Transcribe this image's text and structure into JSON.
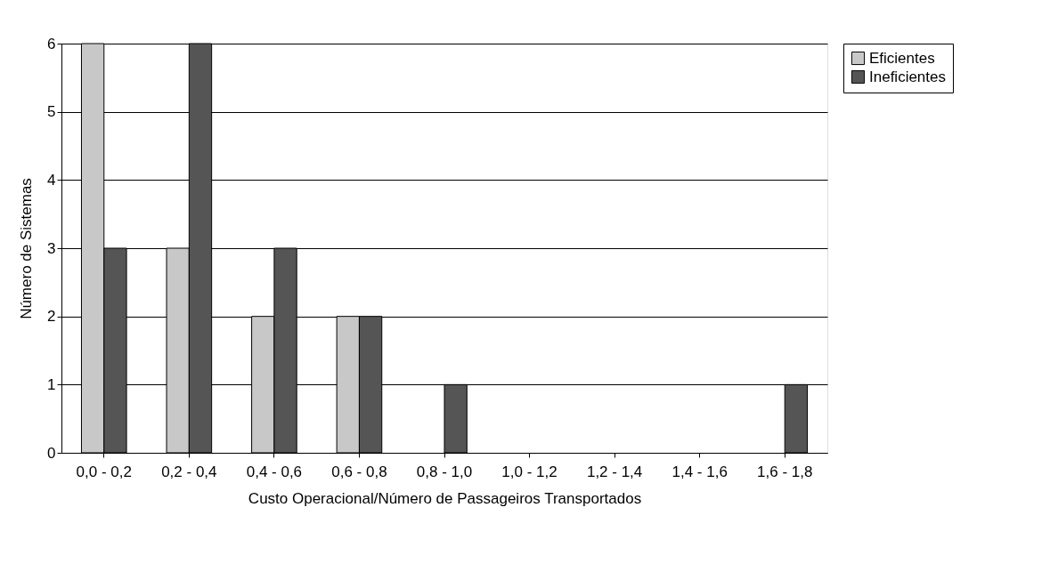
{
  "chart_data": {
    "type": "bar",
    "xlabel": "Custo Operacional/Número de Passageiros Transportados",
    "ylabel": "Número de Sistemas",
    "categories": [
      "0,0 - 0,2",
      "0,2 - 0,4",
      "0,4 - 0,6",
      "0,6 - 0,8",
      "0,8 - 1,0",
      "1,0 - 1,2",
      "1,2 - 1,4",
      "1,4 - 1,6",
      "1,6 - 1,8"
    ],
    "series": [
      {
        "name": "Eficientes",
        "color": "#c8c8c8",
        "values": [
          6,
          3,
          2,
          2,
          0,
          0,
          0,
          0,
          0
        ]
      },
      {
        "name": "Ineficientes",
        "color": "#555555",
        "values": [
          3,
          6,
          3,
          2,
          1,
          0,
          0,
          0,
          1
        ]
      }
    ],
    "ylim": [
      0,
      6
    ],
    "yticks": [
      0,
      1,
      2,
      3,
      4,
      5,
      6
    ],
    "grid": "y",
    "legend": "right"
  }
}
